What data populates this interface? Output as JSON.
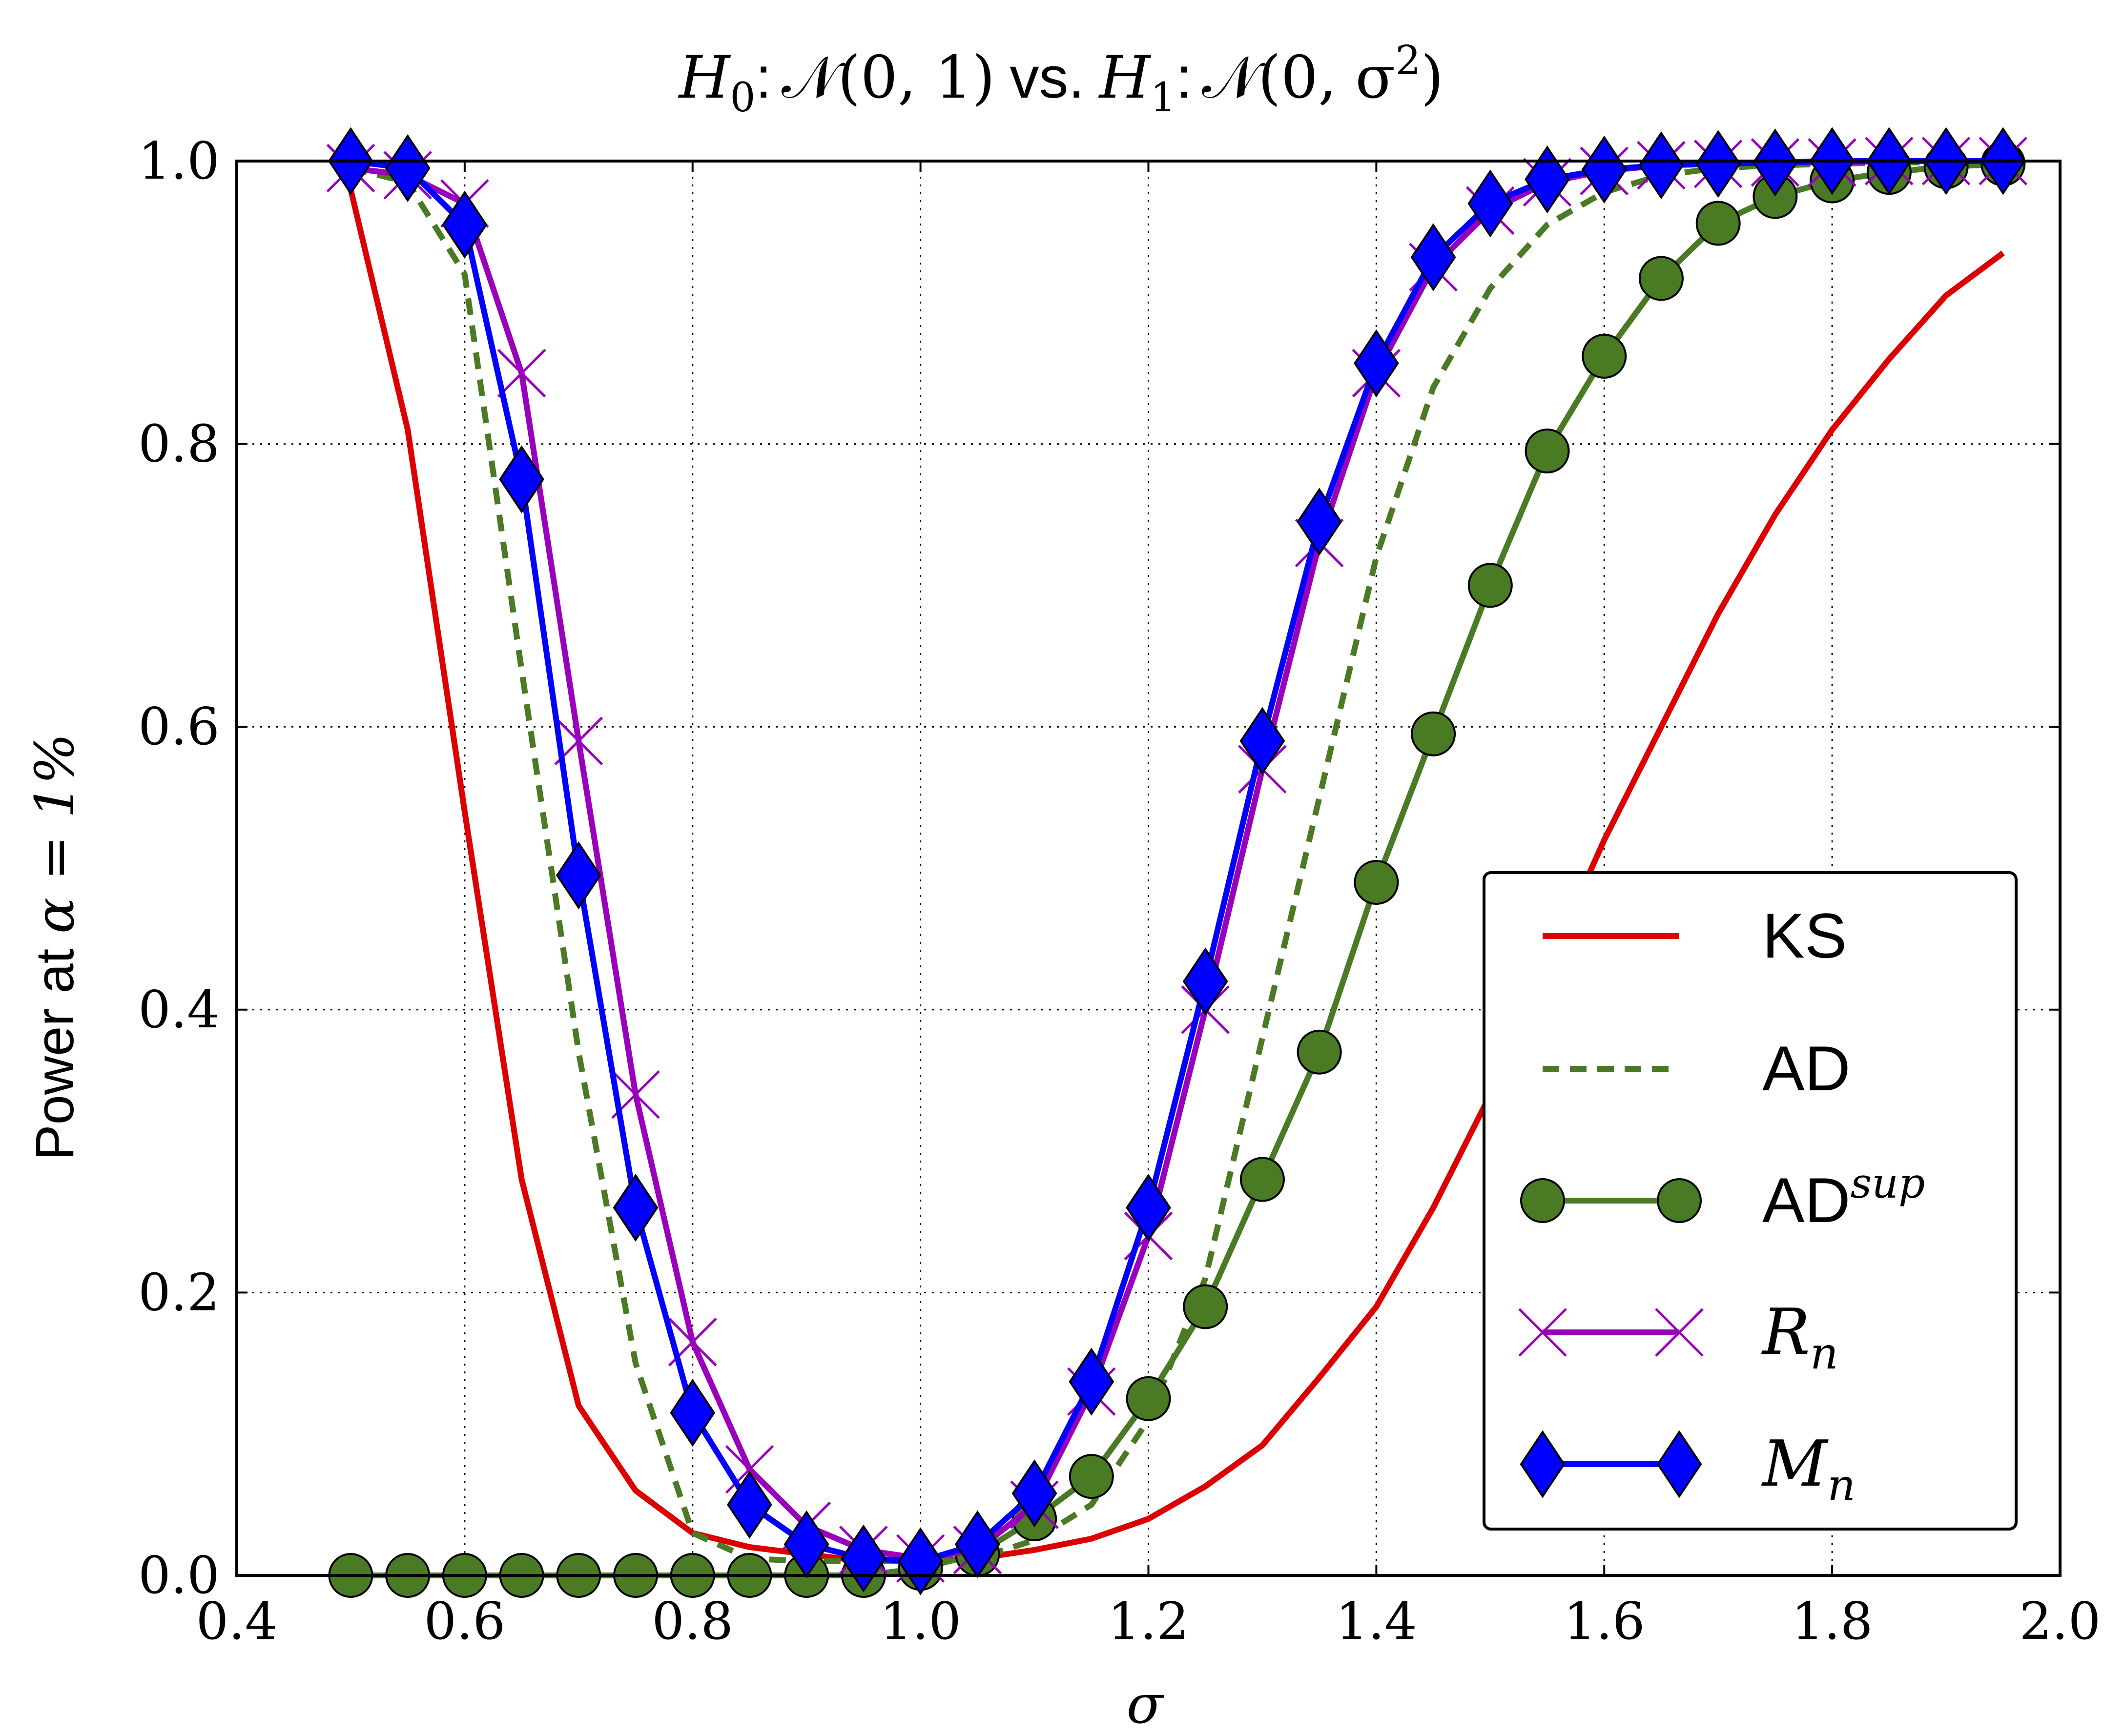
{
  "chart_data": {
    "type": "line",
    "title_parts": {
      "h0": "H",
      "h0_sub": "0",
      "colon1": ":",
      "dist1": "𝒩(0, 1)",
      "vs": "vs.",
      "h1": "H",
      "h1_sub": "1",
      "colon2": ":",
      "dist2": "𝒩(0, σ",
      "dist2_sup": "2",
      "dist2_close": ")"
    },
    "xlabel": "σ",
    "ylabel_text": "Power at ",
    "ylabel_math": "α = 1%",
    "xlim": [
      0.4,
      2.0
    ],
    "ylim": [
      0.0,
      1.0
    ],
    "xticks": [
      "0.4",
      "0.6",
      "0.8",
      "1.0",
      "1.2",
      "1.4",
      "1.6",
      "1.8",
      "2.0"
    ],
    "yticks": [
      "0.0",
      "0.2",
      "0.4",
      "0.6",
      "0.8",
      "1.0"
    ],
    "grid": true,
    "legend_position": "lower-right",
    "x": [
      0.5,
      0.55,
      0.6,
      0.65,
      0.7,
      0.75,
      0.8,
      0.85,
      0.9,
      0.95,
      1.0,
      1.05,
      1.1,
      1.15,
      1.2,
      1.25,
      1.3,
      1.35,
      1.4,
      1.45,
      1.5,
      1.55,
      1.6,
      1.65,
      1.7,
      1.75,
      1.8,
      1.85,
      1.9,
      1.95
    ],
    "series": [
      {
        "name": "KS",
        "color": "#dd0000",
        "style": "solid",
        "marker": "none",
        "values": [
          0.98,
          0.81,
          0.54,
          0.28,
          0.12,
          0.06,
          0.03,
          0.02,
          0.015,
          0.01,
          0.01,
          0.012,
          0.018,
          0.026,
          0.04,
          0.063,
          0.092,
          0.14,
          0.19,
          0.26,
          0.34,
          0.43,
          0.52,
          0.6,
          0.68,
          0.75,
          0.81,
          0.86,
          0.905,
          0.935
        ]
      },
      {
        "name": "AD",
        "color": "#4a7a23",
        "style": "dashed",
        "marker": "none",
        "values": [
          0.995,
          0.985,
          0.92,
          0.64,
          0.37,
          0.15,
          0.03,
          0.012,
          0.01,
          0.01,
          0.01,
          0.012,
          0.025,
          0.05,
          0.11,
          0.21,
          0.38,
          0.55,
          0.72,
          0.84,
          0.91,
          0.955,
          0.978,
          0.99,
          0.995,
          0.997,
          0.998,
          0.999,
          0.999,
          1.0
        ]
      },
      {
        "name": "AD",
        "name_sup": "sup",
        "color": "#4a7a23",
        "style": "solid",
        "marker": "circle",
        "values": [
          0.0,
          0.0,
          0.0,
          0.0,
          0.0,
          0.0,
          0.0,
          0.0,
          0.0,
          0.0,
          0.005,
          0.015,
          0.04,
          0.07,
          0.125,
          0.19,
          0.28,
          0.37,
          0.49,
          0.595,
          0.7,
          0.795,
          0.862,
          0.917,
          0.956,
          0.975,
          0.986,
          0.992,
          0.996,
          0.998
        ]
      },
      {
        "name": "R",
        "name_sub": "n",
        "color": "#9900bb",
        "style": "solid",
        "marker": "x",
        "values": [
          0.995,
          0.99,
          0.97,
          0.85,
          0.59,
          0.34,
          0.165,
          0.075,
          0.035,
          0.018,
          0.012,
          0.018,
          0.05,
          0.13,
          0.24,
          0.4,
          0.57,
          0.73,
          0.85,
          0.925,
          0.965,
          0.985,
          0.993,
          0.997,
          0.998,
          0.999,
          0.999,
          1.0,
          1.0,
          1.0
        ]
      },
      {
        "name": "M",
        "name_sub": "n",
        "color": "#0000ff",
        "style": "solid",
        "marker": "diamond",
        "values": [
          1.0,
          0.995,
          0.955,
          0.775,
          0.495,
          0.26,
          0.115,
          0.05,
          0.022,
          0.012,
          0.01,
          0.022,
          0.058,
          0.137,
          0.26,
          0.42,
          0.59,
          0.745,
          0.857,
          0.932,
          0.97,
          0.987,
          0.994,
          0.997,
          0.998,
          0.999,
          1.0,
          1.0,
          1.0,
          1.0
        ]
      }
    ]
  }
}
